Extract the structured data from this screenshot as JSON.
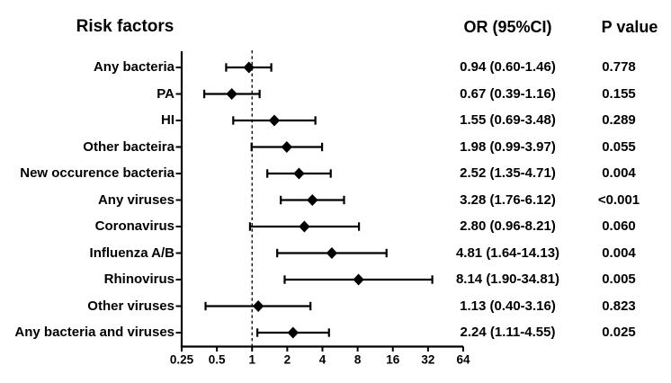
{
  "header": {
    "risk_factors": "Risk factors",
    "or_ci": "OR (95%CI)",
    "p_value": "P value"
  },
  "chart_data": {
    "type": "scatter",
    "subtype": "forest-plot",
    "title": "Risk factors",
    "columns": [
      "Risk factors",
      "OR (95%CI)",
      "P value"
    ],
    "x_scale": "log2",
    "xlim": [
      0.25,
      64
    ],
    "x_tick_values": [
      0.25,
      0.5,
      1,
      2,
      4,
      8,
      16,
      32,
      64
    ],
    "x_ticks": [
      "0.25",
      "0.5",
      "1",
      "2",
      "4",
      "8",
      "16",
      "32",
      "64"
    ],
    "reference_line_x": 1,
    "grid": false,
    "marker": "diamond",
    "marker_color": "#000000",
    "line_color": "#000000",
    "background": "#ffffff",
    "rows": [
      {
        "label": "Any bacteria",
        "or": 0.94,
        "ci_low": 0.6,
        "ci_high": 1.46,
        "or_text": "0.94 (0.60-1.46)",
        "p_text": "0.778"
      },
      {
        "label": "PA",
        "or": 0.67,
        "ci_low": 0.39,
        "ci_high": 1.16,
        "or_text": "0.67 (0.39-1.16)",
        "p_text": "0.155"
      },
      {
        "label": "HI",
        "or": 1.55,
        "ci_low": 0.69,
        "ci_high": 3.48,
        "or_text": "1.55 (0.69-3.48)",
        "p_text": "0.289"
      },
      {
        "label": "Other bacteira",
        "or": 1.98,
        "ci_low": 0.99,
        "ci_high": 3.97,
        "or_text": "1.98 (0.99-3.97)",
        "p_text": "0.055"
      },
      {
        "label": "New occurence bacteria",
        "or": 2.52,
        "ci_low": 1.35,
        "ci_high": 4.71,
        "or_text": "2.52 (1.35-4.71)",
        "p_text": "0.004"
      },
      {
        "label": "Any viruses",
        "or": 3.28,
        "ci_low": 1.76,
        "ci_high": 6.12,
        "or_text": "3.28 (1.76-6.12)",
        "p_text": "<0.001"
      },
      {
        "label": "Coronavirus",
        "or": 2.8,
        "ci_low": 0.96,
        "ci_high": 8.21,
        "or_text": "2.80 (0.96-8.21)",
        "p_text": "0.060"
      },
      {
        "label": "Influenza A/B",
        "or": 4.81,
        "ci_low": 1.64,
        "ci_high": 14.13,
        "or_text": "4.81 (1.64-14.13)",
        "p_text": "0.004"
      },
      {
        "label": "Rhinovirus",
        "or": 8.14,
        "ci_low": 1.9,
        "ci_high": 34.81,
        "or_text": "8.14 (1.90-34.81)",
        "p_text": "0.005"
      },
      {
        "label": "Other viruses",
        "or": 1.13,
        "ci_low": 0.4,
        "ci_high": 3.16,
        "or_text": "1.13 (0.40-3.16)",
        "p_text": "0.823"
      },
      {
        "label": "Any bacteria and viruses",
        "or": 2.24,
        "ci_low": 1.11,
        "ci_high": 4.55,
        "or_text": "2.24 (1.11-4.55)",
        "p_text": "0.025"
      }
    ]
  }
}
